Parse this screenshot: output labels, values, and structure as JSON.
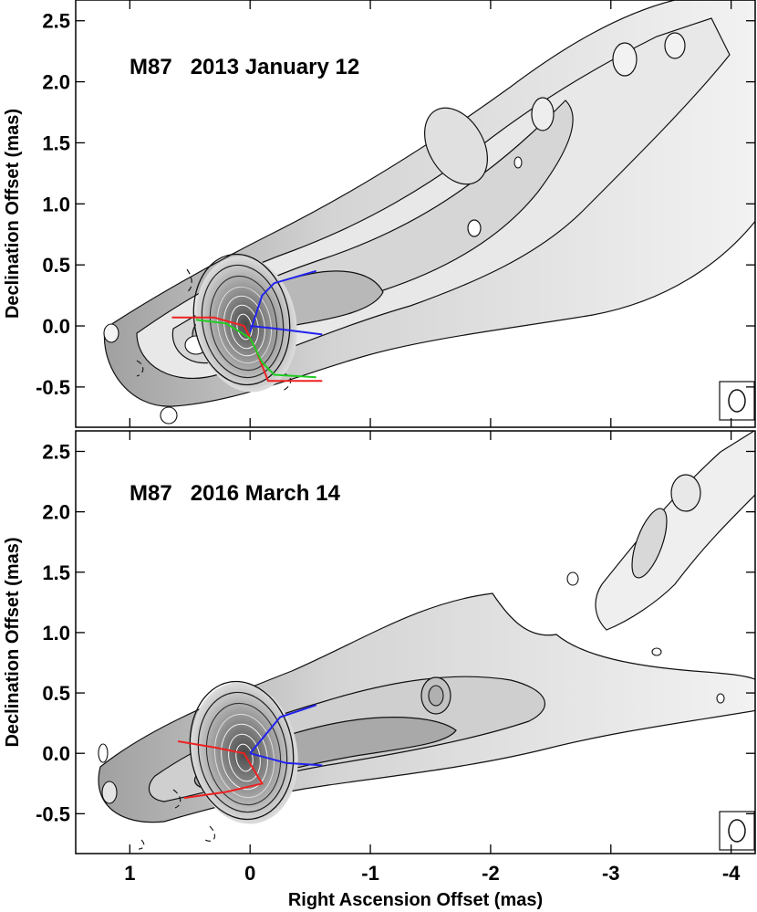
{
  "chart_data": [
    {
      "type": "contour",
      "title": "M87   2013 January 12",
      "xlabel": "",
      "ylabel": "Declination Offset (mas)",
      "xlim": [
        1.45,
        -4.2
      ],
      "ylim": [
        -0.83,
        2.67
      ],
      "xticks": [
        1,
        0,
        -1,
        -2,
        -3,
        -4
      ],
      "yticks": [
        -0.5,
        0.0,
        0.5,
        1.0,
        1.5,
        2.0,
        2.5
      ],
      "ytick_labels": [
        "-0.5",
        "0.0",
        "0.5",
        "1.0",
        "1.5",
        "2.0",
        "2.5"
      ],
      "ridge_lines": [
        {
          "color": "#2222ee",
          "points": [
            [
              0.0,
              -0.05
            ],
            [
              -0.1,
              0.25
            ],
            [
              -0.2,
              0.35
            ],
            [
              -0.55,
              0.45
            ]
          ]
        },
        {
          "color": "#2222ee",
          "points": [
            [
              0.0,
              0.0
            ],
            [
              -0.2,
              -0.02
            ],
            [
              -0.6,
              -0.07
            ]
          ]
        },
        {
          "color": "#ee2222",
          "points": [
            [
              0.65,
              0.07
            ],
            [
              0.3,
              0.07
            ],
            [
              0.05,
              0.0
            ],
            [
              -0.05,
              -0.2
            ],
            [
              -0.15,
              -0.45
            ],
            [
              -0.6,
              -0.45
            ]
          ]
        },
        {
          "color": "#22cc22",
          "points": [
            [
              0.45,
              0.05
            ],
            [
              0.2,
              0.02
            ],
            [
              0.0,
              -0.1
            ],
            [
              -0.1,
              -0.3
            ],
            [
              -0.2,
              -0.4
            ],
            [
              -0.55,
              -0.42
            ]
          ]
        }
      ]
    },
    {
      "type": "contour",
      "title": "M87   2016 March 14",
      "xlabel": "Right Ascension Offset (mas)",
      "ylabel": "Declination Offset (mas)",
      "xlim": [
        1.45,
        -4.2
      ],
      "ylim": [
        -0.83,
        2.67
      ],
      "xticks": [
        1,
        0,
        -1,
        -2,
        -3,
        -4
      ],
      "xtick_labels": [
        "1",
        "0",
        "-1",
        "-2",
        "-3",
        "-4"
      ],
      "yticks": [
        -0.5,
        0.0,
        0.5,
        1.0,
        1.5,
        2.0,
        2.5
      ],
      "ytick_labels": [
        "-0.5",
        "0.0",
        "0.5",
        "1.0",
        "1.5",
        "2.0",
        "2.5"
      ],
      "ridge_lines": [
        {
          "color": "#2222ee",
          "points": [
            [
              0.0,
              0.0
            ],
            [
              -0.25,
              0.3
            ],
            [
              -0.55,
              0.4
            ]
          ]
        },
        {
          "color": "#2222ee",
          "points": [
            [
              0.0,
              0.0
            ],
            [
              -0.3,
              -0.08
            ],
            [
              -0.6,
              -0.1
            ]
          ]
        },
        {
          "color": "#ee2222",
          "points": [
            [
              0.6,
              0.1
            ],
            [
              0.3,
              0.05
            ],
            [
              0.05,
              0.0
            ],
            [
              -0.1,
              -0.25
            ],
            [
              0.2,
              -0.32
            ],
            [
              0.55,
              -0.37
            ]
          ]
        }
      ]
    }
  ]
}
